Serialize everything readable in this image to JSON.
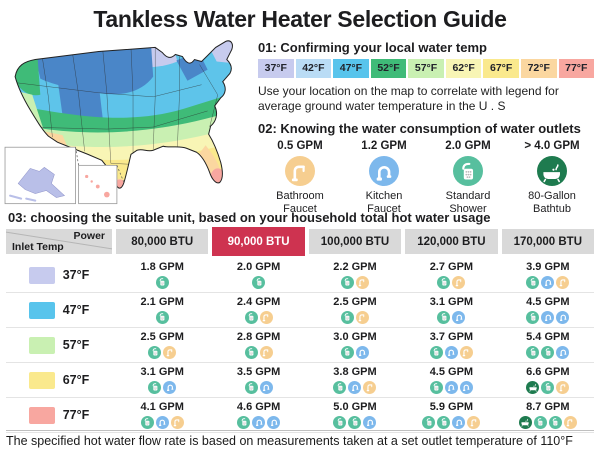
{
  "title": "Tankless Water Heater Selection Guide",
  "colors": {
    "accent_red": "#ce3350",
    "header_gray": "#d9d9d9",
    "icons": {
      "shower": "#57bf9e",
      "kitchen-faucet": "#7db8ec",
      "bathroom-faucet": "#f6ce90",
      "bathtub": "#1e7b4f"
    }
  },
  "section1": {
    "heading": "01:  Confirming your local water temp",
    "legend": [
      {
        "label": "37°F",
        "color": "#c7cbee"
      },
      {
        "label": "42°F",
        "color": "#badcf5"
      },
      {
        "label": "47°F",
        "color": "#58c4ec"
      },
      {
        "label": "52°F",
        "color": "#3fbb78"
      },
      {
        "label": "57°F",
        "color": "#c9f0b2"
      },
      {
        "label": "62°F",
        "color": "#f8f5b5"
      },
      {
        "label": "67°F",
        "color": "#fae98d"
      },
      {
        "label": "72°F",
        "color": "#fbd7a0"
      },
      {
        "label": "77°F",
        "color": "#f8a7a0"
      }
    ],
    "note": "Use your location on the map to correlate with legend for average ground water temperature in the U . S"
  },
  "section2": {
    "heading": "02:  Knowing the water consumption of water outlets",
    "outlets": [
      {
        "gpm": "0.5 GPM",
        "name": "Bathroom Faucet",
        "icon": "bathroom-faucet"
      },
      {
        "gpm": "1.2 GPM",
        "name": "Kitchen Faucet",
        "icon": "kitchen-faucet"
      },
      {
        "gpm": "2.0 GPM",
        "name": "Standard Shower",
        "icon": "shower"
      },
      {
        "gpm": "> 4.0 GPM",
        "name": "80-Gallon Bathtub",
        "icon": "bathtub"
      }
    ]
  },
  "section3": {
    "heading": "03:  choosing the suitable unit, based on your household total hot water usage",
    "corner": {
      "top": "Power",
      "bottom": "Inlet Temp"
    },
    "columns": [
      "80,000 BTU",
      "90,000 BTU",
      "100,000 BTU",
      "120,000 BTU",
      "170,000 BTU"
    ],
    "highlight_column": 1,
    "rows": [
      {
        "temp": "37°F",
        "swatch": "#c7cbee",
        "cells": [
          {
            "gpm": "1.8 GPM",
            "icons": [
              "shower"
            ]
          },
          {
            "gpm": "2.0 GPM",
            "icons": [
              "shower"
            ]
          },
          {
            "gpm": "2.2 GPM",
            "icons": [
              "shower",
              "bathroom-faucet"
            ]
          },
          {
            "gpm": "2.7 GPM",
            "icons": [
              "shower",
              "bathroom-faucet"
            ]
          },
          {
            "gpm": "3.9 GPM",
            "icons": [
              "shower",
              "kitchen-faucet",
              "bathroom-faucet"
            ]
          }
        ]
      },
      {
        "temp": "47°F",
        "swatch": "#58c4ec",
        "cells": [
          {
            "gpm": "2.1 GPM",
            "icons": [
              "shower"
            ]
          },
          {
            "gpm": "2.4 GPM",
            "icons": [
              "shower",
              "bathroom-faucet"
            ]
          },
          {
            "gpm": "2.5 GPM",
            "icons": [
              "shower",
              "bathroom-faucet"
            ]
          },
          {
            "gpm": "3.1 GPM",
            "icons": [
              "shower",
              "kitchen-faucet"
            ]
          },
          {
            "gpm": "4.5 GPM",
            "icons": [
              "shower",
              "kitchen-faucet",
              "kitchen-faucet"
            ]
          }
        ]
      },
      {
        "temp": "57°F",
        "swatch": "#c9f0b2",
        "cells": [
          {
            "gpm": "2.5 GPM",
            "icons": [
              "shower",
              "bathroom-faucet"
            ]
          },
          {
            "gpm": "2.8 GPM",
            "icons": [
              "shower",
              "bathroom-faucet"
            ]
          },
          {
            "gpm": "3.0 GPM",
            "icons": [
              "shower",
              "kitchen-faucet"
            ]
          },
          {
            "gpm": "3.7 GPM",
            "icons": [
              "shower",
              "kitchen-faucet",
              "bathroom-faucet"
            ]
          },
          {
            "gpm": "5.4 GPM",
            "icons": [
              "shower",
              "shower",
              "kitchen-faucet"
            ]
          }
        ]
      },
      {
        "temp": "67°F",
        "swatch": "#fae98d",
        "cells": [
          {
            "gpm": "3.1 GPM",
            "icons": [
              "shower",
              "kitchen-faucet"
            ]
          },
          {
            "gpm": "3.5 GPM",
            "icons": [
              "shower",
              "kitchen-faucet"
            ]
          },
          {
            "gpm": "3.8 GPM",
            "icons": [
              "shower",
              "kitchen-faucet",
              "bathroom-faucet"
            ]
          },
          {
            "gpm": "4.5 GPM",
            "icons": [
              "shower",
              "kitchen-faucet",
              "kitchen-faucet"
            ]
          },
          {
            "gpm": "6.6 GPM",
            "icons": [
              "bathtub",
              "shower",
              "bathroom-faucet"
            ]
          }
        ]
      },
      {
        "temp": "77°F",
        "swatch": "#f8a7a0",
        "cells": [
          {
            "gpm": "4.1 GPM",
            "icons": [
              "shower",
              "kitchen-faucet",
              "bathroom-faucet"
            ]
          },
          {
            "gpm": "4.6 GPM",
            "icons": [
              "shower",
              "kitchen-faucet",
              "kitchen-faucet"
            ]
          },
          {
            "gpm": "5.0 GPM",
            "icons": [
              "shower",
              "shower",
              "kitchen-faucet"
            ]
          },
          {
            "gpm": "5.9 GPM",
            "icons": [
              "shower",
              "shower",
              "kitchen-faucet",
              "bathroom-faucet"
            ]
          },
          {
            "gpm": "8.7 GPM",
            "icons": [
              "bathtub",
              "shower",
              "shower",
              "bathroom-faucet"
            ]
          }
        ]
      }
    ]
  },
  "footer": "The specified hot water flow rate is based on measurements taken at a set outlet temperature of 110°F"
}
